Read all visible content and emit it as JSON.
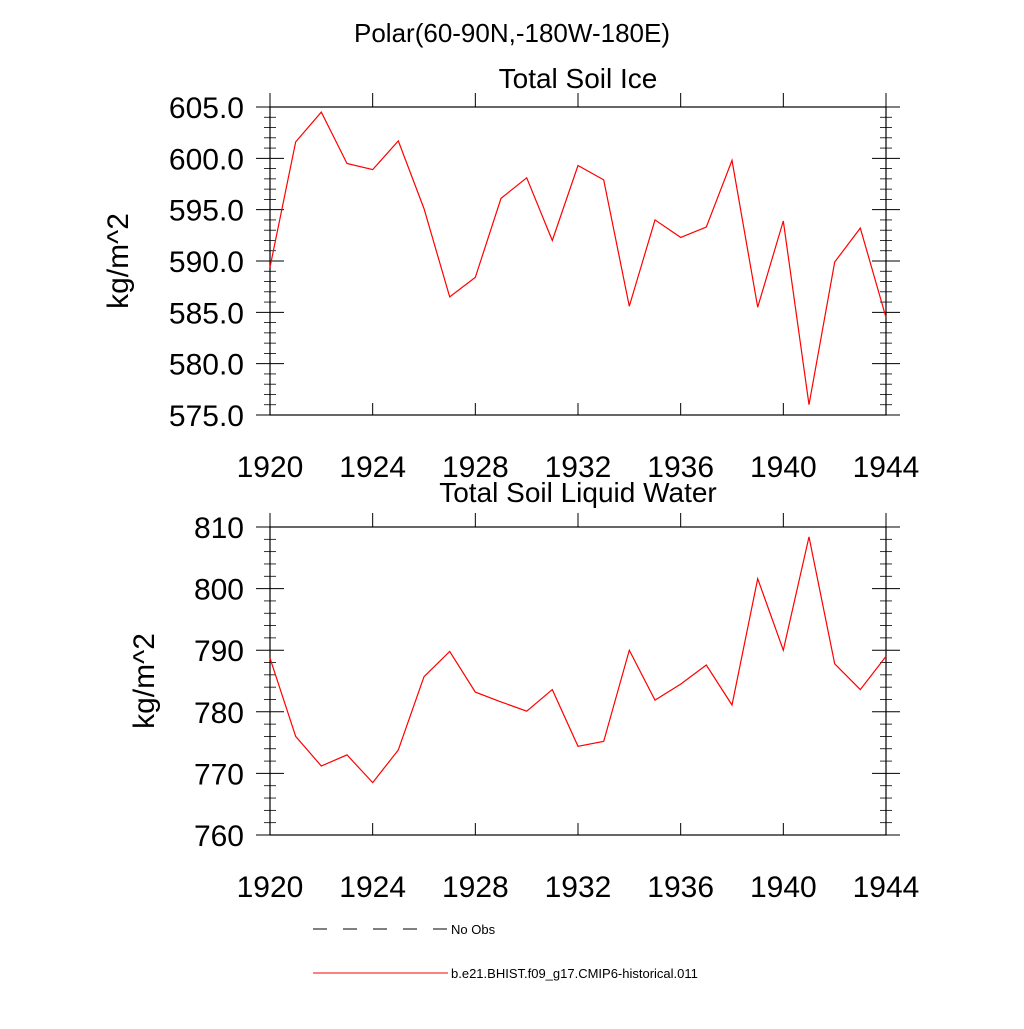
{
  "figure": {
    "title": "Polar(60-90N,-180W-180E)"
  },
  "legend": {
    "placement": "bottom",
    "entries": [
      {
        "label": "No Obs",
        "style": "dashed",
        "color": "#000000"
      },
      {
        "label": "b.e21.BHIST.f09_g17.CMIP6-historical.011",
        "style": "solid",
        "color": "#ff0000"
      }
    ]
  },
  "chart_data": [
    {
      "type": "line",
      "title": "Total Soil Ice",
      "xlabel": "",
      "ylabel": "kg/m^2",
      "xlim": [
        1920,
        1944
      ],
      "ylim": [
        575,
        605
      ],
      "x_ticks": [
        1920,
        1924,
        1928,
        1932,
        1936,
        1940,
        1944
      ],
      "x_tick_labels": [
        "1920",
        "1924",
        "1928",
        "1932",
        "1936",
        "1940",
        "1944"
      ],
      "y_ticks": [
        575,
        580,
        585,
        590,
        595,
        600,
        605
      ],
      "y_tick_labels": [
        "575.0",
        "580.0",
        "585.0",
        "590.0",
        "595.0",
        "600.0",
        "605.0"
      ],
      "grid": false,
      "series": [
        {
          "name": "b.e21.BHIST.f09_g17.CMIP6-historical.011",
          "color": "#ff0000",
          "x": [
            1920,
            1921,
            1922,
            1923,
            1924,
            1925,
            1926,
            1927,
            1928,
            1929,
            1930,
            1931,
            1932,
            1933,
            1934,
            1935,
            1936,
            1937,
            1938,
            1939,
            1940,
            1941,
            1942,
            1943,
            1944
          ],
          "values": [
            589.4,
            601.6,
            604.5,
            599.5,
            598.9,
            601.7,
            595.1,
            586.5,
            588.4,
            596.1,
            598.1,
            592.0,
            599.3,
            597.9,
            585.6,
            594.0,
            592.3,
            593.3,
            599.8,
            585.5,
            593.9,
            576.0,
            589.9,
            593.2,
            584.5
          ]
        }
      ]
    },
    {
      "type": "line",
      "title": "Total Soil Liquid Water",
      "xlabel": "",
      "ylabel": "kg/m^2",
      "xlim": [
        1920,
        1944
      ],
      "ylim": [
        760,
        810
      ],
      "x_ticks": [
        1920,
        1924,
        1928,
        1932,
        1936,
        1940,
        1944
      ],
      "x_tick_labels": [
        "1920",
        "1924",
        "1928",
        "1932",
        "1936",
        "1940",
        "1944"
      ],
      "y_ticks": [
        760,
        770,
        780,
        790,
        800,
        810
      ],
      "y_tick_labels": [
        "760",
        "770",
        "780",
        "790",
        "800",
        "810"
      ],
      "grid": false,
      "series": [
        {
          "name": "b.e21.BHIST.f09_g17.CMIP6-historical.011",
          "color": "#ff0000",
          "x": [
            1920,
            1921,
            1922,
            1923,
            1924,
            1925,
            1926,
            1927,
            1928,
            1929,
            1930,
            1931,
            1932,
            1933,
            1934,
            1935,
            1936,
            1937,
            1938,
            1939,
            1940,
            1941,
            1942,
            1943,
            1944
          ],
          "values": [
            788.7,
            776.0,
            771.2,
            773.0,
            768.5,
            773.8,
            785.7,
            789.8,
            783.2,
            781.6,
            780.1,
            783.6,
            774.4,
            775.2,
            790.0,
            781.9,
            784.5,
            787.6,
            781.1,
            801.6,
            790.0,
            808.4,
            787.8,
            783.6,
            789.0
          ]
        }
      ]
    }
  ]
}
